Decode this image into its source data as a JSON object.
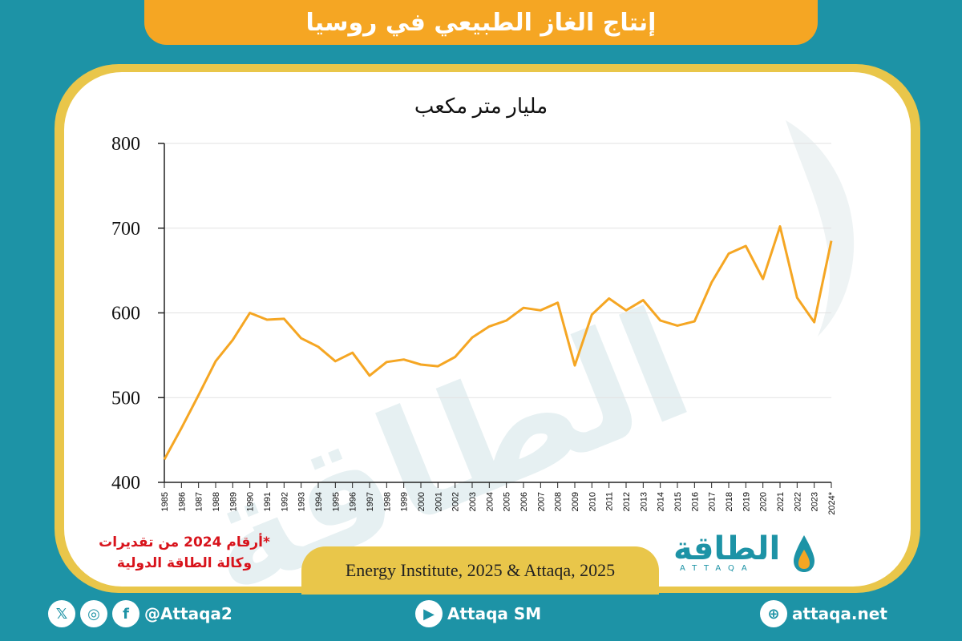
{
  "header": {
    "title": "إنتاج الغاز الطبيعي في روسيا"
  },
  "chart": {
    "unit_label": "مليار متر مكعب",
    "note": "*أرقام 2024 من تقديرات وكالة الطاقة الدولية",
    "source": "Energy Institute, 2025 & Attaqa, 2025"
  },
  "chart_data": {
    "type": "line",
    "title": "",
    "xlabel": "",
    "ylabel": "مليار متر مكعب",
    "ylim": [
      400,
      800
    ],
    "yticks": [
      400,
      500,
      600,
      700,
      800
    ],
    "grid": true,
    "x": [
      "1985",
      "1986",
      "1987",
      "1988",
      "1989",
      "1990",
      "1991",
      "1992",
      "1993",
      "1994",
      "1995",
      "1996",
      "1997",
      "1998",
      "1999",
      "2000",
      "2001",
      "2002",
      "2003",
      "2004",
      "2005",
      "2006",
      "2007",
      "2008",
      "2009",
      "2010",
      "2011",
      "2012",
      "2013",
      "2014",
      "2015",
      "2016",
      "2017",
      "2018",
      "2019",
      "2020",
      "2021",
      "2022",
      "2023",
      "2024*"
    ],
    "series": [
      {
        "values": [
          427,
          464,
          503,
          543,
          568,
          600,
          592,
          593,
          570,
          560,
          543,
          553,
          526,
          542,
          545,
          539,
          537,
          548,
          571,
          584,
          591,
          606,
          603,
          612,
          538,
          598,
          617,
          603,
          615,
          591,
          585,
          590,
          636,
          670,
          679,
          640,
          702,
          618,
          589,
          685
        ]
      }
    ],
    "line_color": "#f5a623"
  },
  "logo": {
    "text": "الطاقة",
    "sub": "ATTAQA"
  },
  "footer": {
    "social_handle": "@Attaqa2",
    "youtube": "Attaqa SM",
    "website": "attaqa.net"
  }
}
